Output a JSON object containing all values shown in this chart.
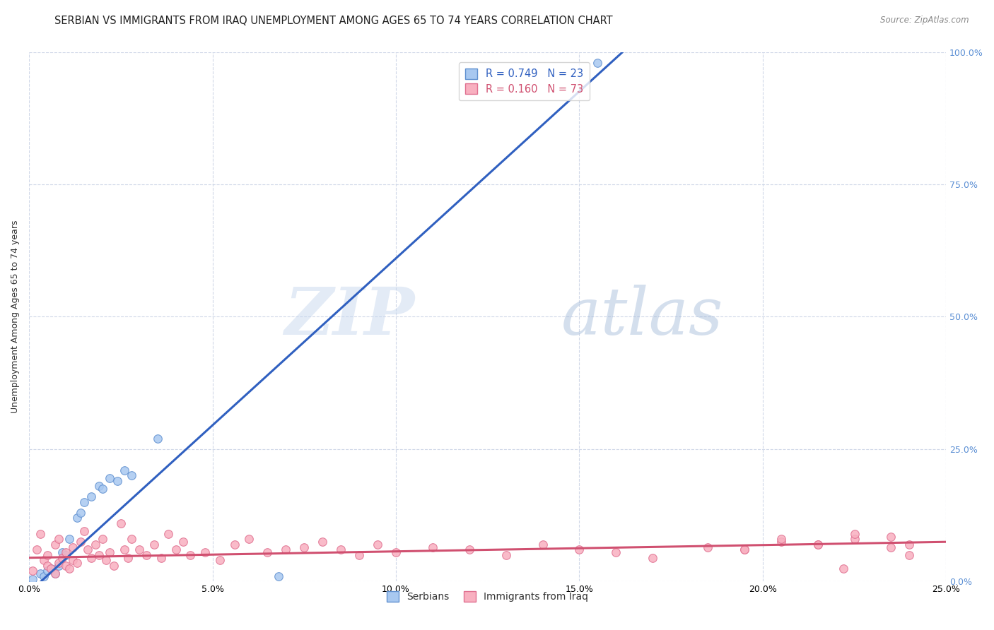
{
  "title": "SERBIAN VS IMMIGRANTS FROM IRAQ UNEMPLOYMENT AMONG AGES 65 TO 74 YEARS CORRELATION CHART",
  "source": "Source: ZipAtlas.com",
  "ylabel": "Unemployment Among Ages 65 to 74 years",
  "xlim": [
    0.0,
    0.25
  ],
  "ylim": [
    0.0,
    1.0
  ],
  "xtick_labels": [
    "0.0%",
    "5.0%",
    "10.0%",
    "15.0%",
    "20.0%",
    "25.0%"
  ],
  "xtick_values": [
    0.0,
    0.05,
    0.1,
    0.15,
    0.2,
    0.25
  ],
  "ytick_values": [
    0.0,
    0.25,
    0.5,
    0.75,
    1.0
  ],
  "ytick_right_labels": [
    "0.0%",
    "25.0%",
    "50.0%",
    "75.0%",
    "100.0%"
  ],
  "serbian_color": "#a8c8f0",
  "serbian_edge_color": "#6090d0",
  "iraq_color": "#f8b0c0",
  "iraq_edge_color": "#e07090",
  "trendline_serbian_color": "#3060c0",
  "trendline_iraq_color": "#d05070",
  "legend_R_serbian": "R = 0.749",
  "legend_N_serbian": "N = 23",
  "legend_R_iraq": "R = 0.160",
  "legend_N_iraq": "N = 73",
  "legend_label_serbian": "Serbians",
  "legend_label_iraq": "Immigrants from Iraq",
  "watermark_zip": "ZIP",
  "watermark_atlas": "atlas",
  "marker_size": 70,
  "serbian_x": [
    0.001,
    0.003,
    0.004,
    0.005,
    0.006,
    0.007,
    0.008,
    0.009,
    0.01,
    0.011,
    0.013,
    0.014,
    0.015,
    0.017,
    0.019,
    0.02,
    0.022,
    0.024,
    0.026,
    0.028,
    0.035,
    0.068,
    0.155
  ],
  "serbian_y": [
    0.005,
    0.015,
    0.01,
    0.02,
    0.025,
    0.015,
    0.03,
    0.055,
    0.05,
    0.08,
    0.12,
    0.13,
    0.15,
    0.16,
    0.18,
    0.175,
    0.195,
    0.19,
    0.21,
    0.2,
    0.27,
    0.01,
    0.98
  ],
  "iraq_x": [
    0.001,
    0.002,
    0.003,
    0.004,
    0.005,
    0.005,
    0.006,
    0.007,
    0.007,
    0.008,
    0.008,
    0.009,
    0.01,
    0.01,
    0.011,
    0.012,
    0.012,
    0.013,
    0.014,
    0.015,
    0.016,
    0.017,
    0.018,
    0.019,
    0.02,
    0.021,
    0.022,
    0.023,
    0.025,
    0.026,
    0.027,
    0.028,
    0.03,
    0.032,
    0.034,
    0.036,
    0.038,
    0.04,
    0.042,
    0.044,
    0.048,
    0.052,
    0.056,
    0.06,
    0.065,
    0.07,
    0.075,
    0.08,
    0.085,
    0.09,
    0.095,
    0.1,
    0.11,
    0.12,
    0.13,
    0.14,
    0.15,
    0.16,
    0.17,
    0.185,
    0.195,
    0.205,
    0.215,
    0.225,
    0.235,
    0.24,
    0.235,
    0.225,
    0.215,
    0.205,
    0.195,
    0.222,
    0.24
  ],
  "iraq_y": [
    0.02,
    0.06,
    0.09,
    0.04,
    0.05,
    0.03,
    0.025,
    0.07,
    0.015,
    0.035,
    0.08,
    0.045,
    0.055,
    0.03,
    0.025,
    0.04,
    0.065,
    0.035,
    0.075,
    0.095,
    0.06,
    0.045,
    0.07,
    0.05,
    0.08,
    0.04,
    0.055,
    0.03,
    0.11,
    0.06,
    0.045,
    0.08,
    0.06,
    0.05,
    0.07,
    0.045,
    0.09,
    0.06,
    0.075,
    0.05,
    0.055,
    0.04,
    0.07,
    0.08,
    0.055,
    0.06,
    0.065,
    0.075,
    0.06,
    0.05,
    0.07,
    0.055,
    0.065,
    0.06,
    0.05,
    0.07,
    0.06,
    0.055,
    0.045,
    0.065,
    0.06,
    0.075,
    0.07,
    0.08,
    0.065,
    0.07,
    0.085,
    0.09,
    0.07,
    0.08,
    0.06,
    0.025,
    0.05
  ],
  "serbian_trend_x0": 0.0,
  "serbian_trend_y0": -0.02,
  "serbian_trend_x1": 0.165,
  "serbian_trend_y1": 1.02,
  "iraq_trend_x0": 0.0,
  "iraq_trend_y0": 0.045,
  "iraq_trend_x1": 0.25,
  "iraq_trend_y1": 0.075,
  "grid_color": "#d0d8e8",
  "title_fontsize": 10.5,
  "axis_label_fontsize": 9,
  "tick_fontsize": 9,
  "right_tick_color": "#5b8fd4",
  "background_color": "#ffffff"
}
